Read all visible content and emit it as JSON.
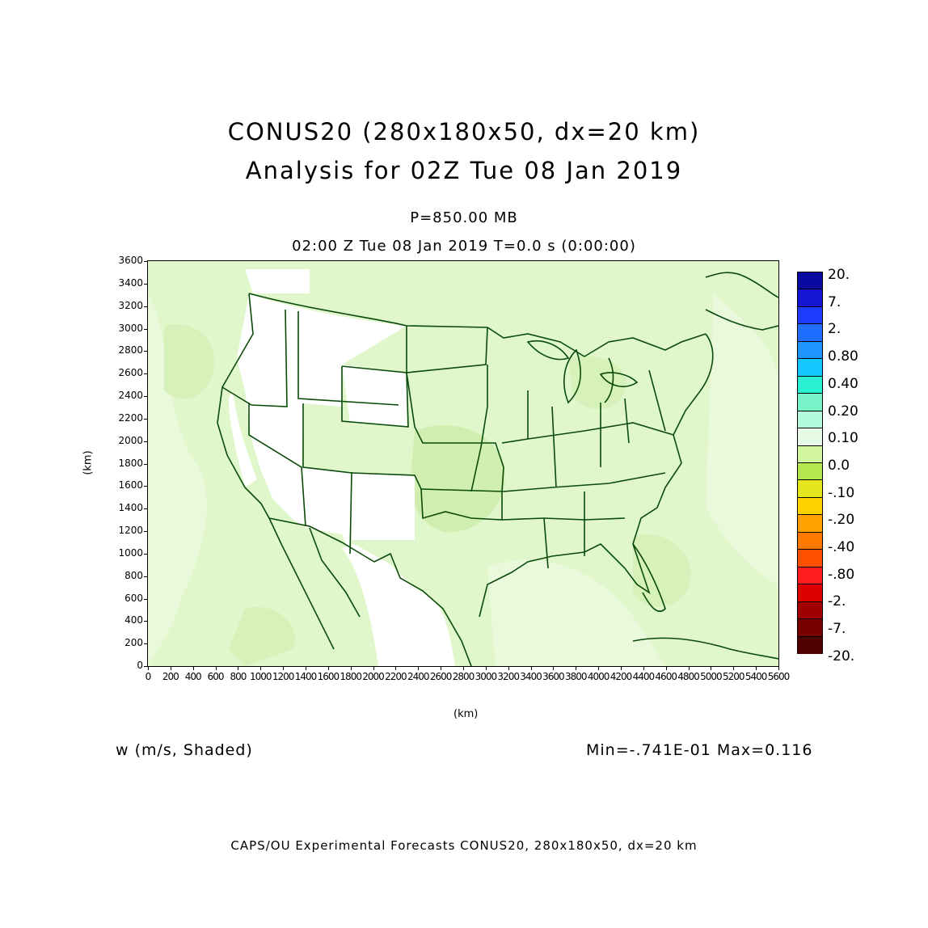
{
  "title": {
    "line1": "CONUS20 (280x180x50, dx=20 km)",
    "line2": "Analysis for 02Z Tue 08 Jan 2019"
  },
  "level": "P=850.00 MB",
  "time_line": "02:00 Z Tue 08 Jan 2019    T=0.0 s (0:00:00)",
  "axes": {
    "ylabel": "(km)",
    "xlabel": "(km)",
    "yticks": [
      "0",
      "200",
      "400",
      "600",
      "800",
      "1000",
      "1200",
      "1400",
      "1600",
      "1800",
      "2000",
      "2200",
      "2400",
      "2600",
      "2800",
      "3000",
      "3200",
      "3400",
      "3600"
    ],
    "xticks": [
      "0",
      "200",
      "400",
      "600",
      "800",
      "1000",
      "1200",
      "1400",
      "1600",
      "1800",
      "2000",
      "2200",
      "2400",
      "2600",
      "2800",
      "3000",
      "3200",
      "3400",
      "3600",
      "3800",
      "4000",
      "4200",
      "4400",
      "4600",
      "4800",
      "5000",
      "5200",
      "5400",
      "5600"
    ],
    "xrange": [
      0,
      5600
    ],
    "yrange": [
      0,
      3600
    ]
  },
  "field_label": "w (m/s, Shaded)",
  "minmax": "Min=-.741E-01 Max=0.116",
  "footer": "CAPS/OU Experimental Forecasts  CONUS20, 280x180x50, dx=20 km",
  "colorbar": {
    "labels": [
      "20.",
      "7.",
      "2.",
      "0.80",
      "0.40",
      "0.20",
      "0.10",
      "0.0",
      "-.10",
      "-.20",
      "-.40",
      "-.80",
      "-2.",
      "-7.",
      "-20."
    ],
    "colors": [
      "#0a0aa0",
      "#1414d2",
      "#1e3cff",
      "#1e6eff",
      "#1e96ff",
      "#14c8ff",
      "#28f0d2",
      "#78f5c8",
      "#b4fadc",
      "#e6fae6",
      "#d2f5a0",
      "#b4e650",
      "#e6e61e",
      "#ffd200",
      "#ffa000",
      "#ff7800",
      "#ff5000",
      "#ff1e1e",
      "#dc0000",
      "#a00000",
      "#780000",
      "#500000"
    ]
  },
  "colors": {
    "background_fill": "#e0f7cc",
    "light_fill": "#f2fbe8",
    "darker_fill": "#d3f0b4",
    "white_fill": "#ffffff",
    "boundary": "#0a4a0a"
  }
}
